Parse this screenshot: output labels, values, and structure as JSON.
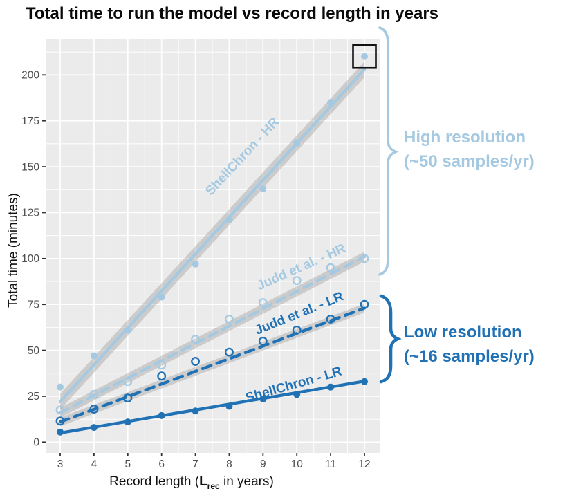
{
  "title": "Total time to run the model vs record length in years",
  "axes": {
    "y_label": "Total time (minutes)",
    "x_label_pre": "Record length (",
    "x_label_var": "L",
    "x_label_sub": "rec",
    "x_label_post": " in years)"
  },
  "annotations": {
    "high_resolution": {
      "line1": "High resolution",
      "line2": "(~50 samples/yr)",
      "color": "#a6c9e2"
    },
    "low_resolution": {
      "line1": "Low resolution",
      "line2": "(~16 samples/yr)",
      "color": "#2171b5"
    }
  },
  "highlight_box": {
    "series": "ShellChron - HR",
    "x": 12,
    "value": 210,
    "color": "#111111"
  },
  "colors": {
    "panel_background": "#ebebeb",
    "grid": "#ffffff",
    "tick_mark": "#333333",
    "tick_text": "#4d4d4d",
    "confidence_band": "#808080",
    "light_blue": "#a6c9e2",
    "dark_blue": "#2171b5"
  },
  "chart_data": {
    "type": "scatter",
    "title": "Total time to run the model vs record length in years",
    "xlabel": "Record length (L_rec in years)",
    "ylabel": "Total time (minutes)",
    "x": [
      3,
      4,
      5,
      6,
      7,
      8,
      9,
      10,
      11,
      12
    ],
    "x_ticks": [
      3,
      4,
      5,
      6,
      7,
      8,
      9,
      10,
      11,
      12
    ],
    "y_ticks": [
      0,
      25,
      50,
      75,
      100,
      125,
      150,
      175,
      200
    ],
    "xlim": [
      2.57,
      12.45
    ],
    "ylim": [
      -5.9,
      219.7
    ],
    "grid": "white major and minor gridlines on gray panel",
    "legend_position": "labels drawn along lines",
    "series": [
      {
        "name": "ShellChron - HR",
        "group": "high resolution",
        "color": "#a6c9e2",
        "line": "solid",
        "marker": "filled",
        "values": [
          30,
          47,
          61,
          79,
          97,
          121,
          138,
          163,
          185,
          210
        ],
        "trend": {
          "start": 22,
          "end": 203
        },
        "band_halfwidth": 4.3
      },
      {
        "name": "Judd et al. - HR",
        "group": "high resolution",
        "color": "#a6c9e2",
        "line": "dashed",
        "marker": "open",
        "values": [
          17.5,
          26,
          33,
          42,
          56,
          67,
          76,
          88,
          95,
          100
        ],
        "trend": {
          "start": 16,
          "end": 101
        },
        "band_halfwidth": 2.7
      },
      {
        "name": "Judd et al. - LR",
        "group": "low resolution",
        "color": "#2171b5",
        "line": "dashed",
        "marker": "open",
        "values": [
          11.5,
          18,
          24,
          36,
          44,
          49,
          55,
          61,
          67,
          75
        ],
        "trend": {
          "start": 11,
          "end": 73
        },
        "band_halfwidth": 2.4
      },
      {
        "name": "ShellChron - LR",
        "group": "low resolution",
        "color": "#2171b5",
        "line": "solid",
        "marker": "filled",
        "values": [
          5.5,
          8,
          11,
          14.5,
          17,
          19.5,
          23.5,
          26,
          30,
          33
        ],
        "trend": {
          "start": 5,
          "end": 33.2
        },
        "band_halfwidth": 0
      }
    ]
  }
}
